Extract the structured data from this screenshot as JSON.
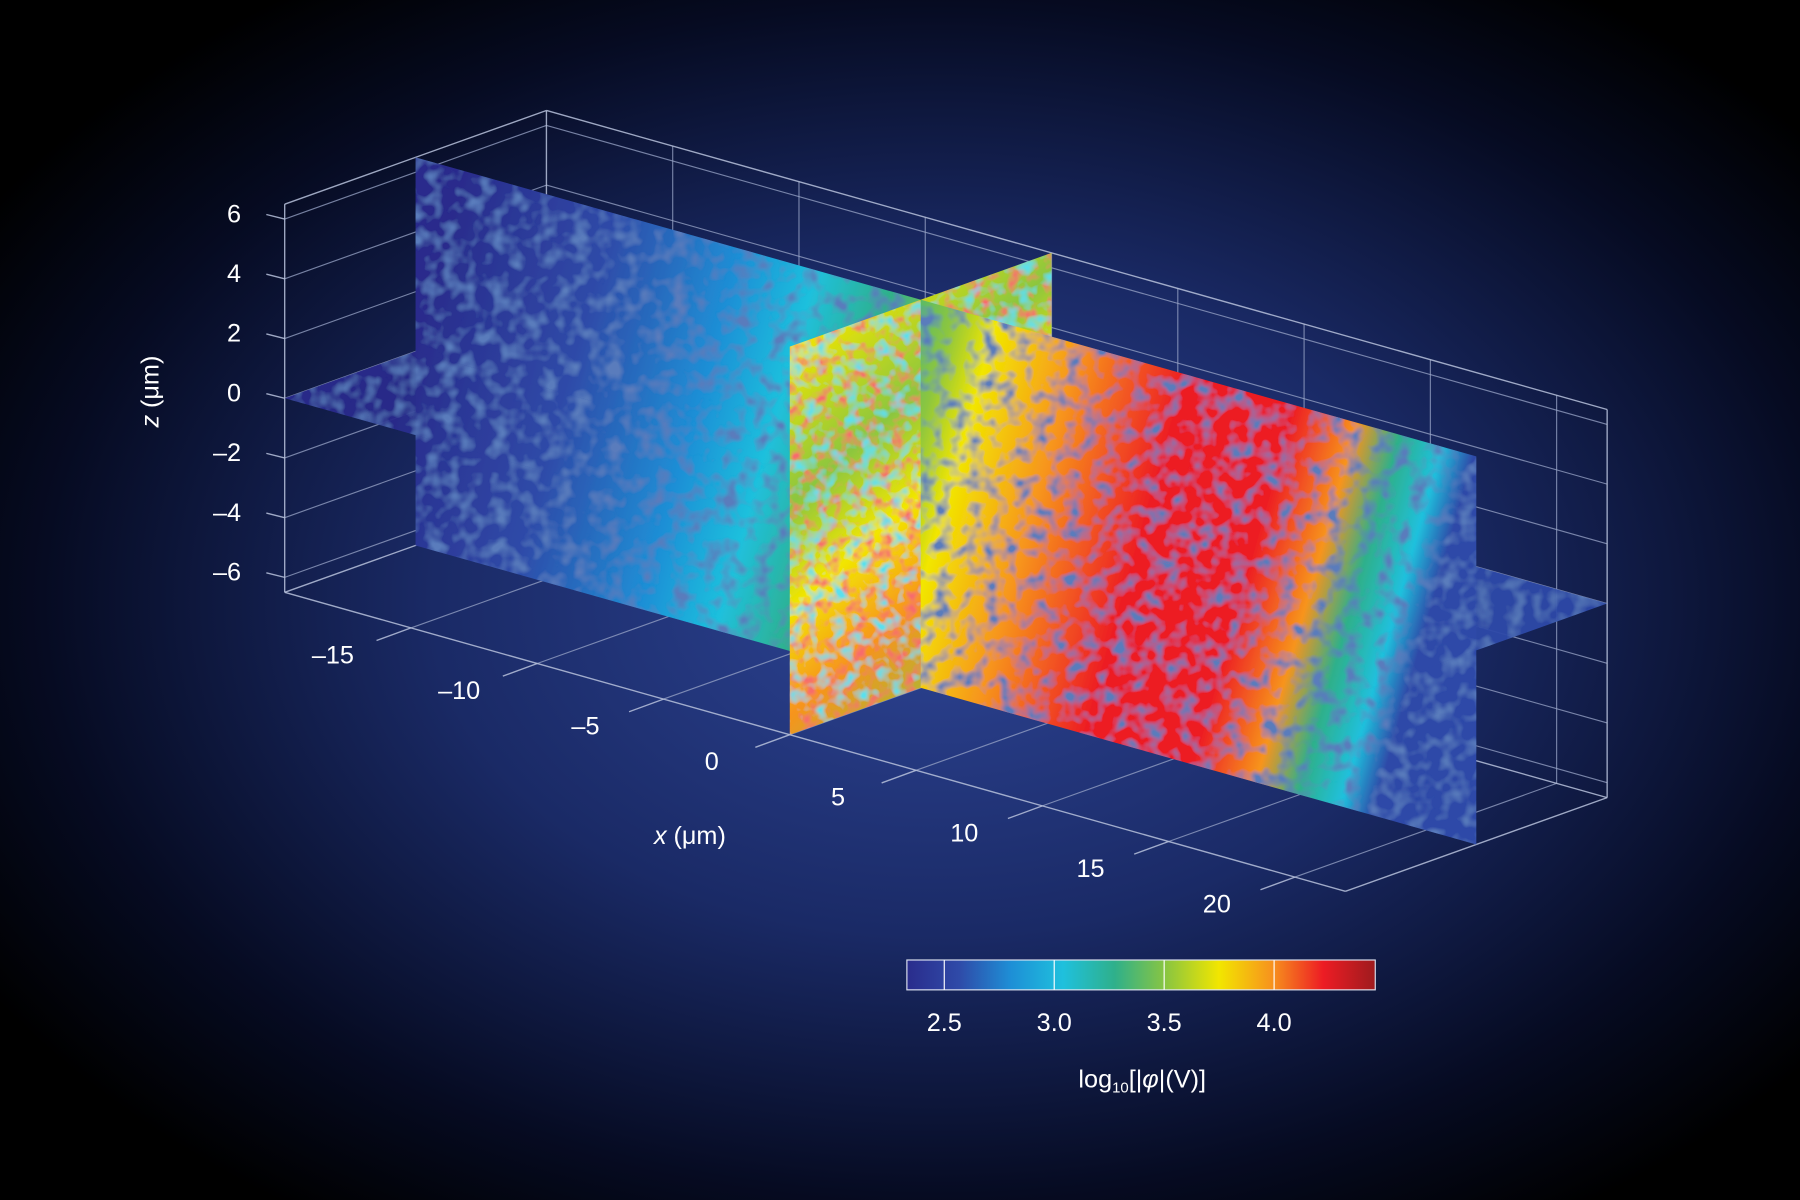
{
  "chart_data": {
    "type": "slices3d",
    "xlabel": {
      "variable": "x",
      "unit": "(μm)"
    },
    "zlabel": {
      "variable": "z",
      "unit": "(μm)"
    },
    "xlim": [
      -20,
      22
    ],
    "ylim": [
      -6,
      6
    ],
    "zlim": [
      -6.5,
      6.5
    ],
    "xticks": [
      {
        "value": -15,
        "label": "–15"
      },
      {
        "value": -10,
        "label": "–10"
      },
      {
        "value": -5,
        "label": "–5"
      },
      0,
      5,
      10,
      15,
      20
    ],
    "zticks": [
      6,
      4,
      2,
      0,
      {
        "value": -2,
        "label": "–2"
      },
      {
        "value": -4,
        "label": "–4"
      },
      {
        "value": -6,
        "label": "–6"
      }
    ],
    "grid": true,
    "colorbar": {
      "clim": [
        2.33,
        4.46
      ],
      "ticks": [
        2.5,
        {
          "value": 3,
          "label": "3.0"
        },
        3.5,
        {
          "value": 4,
          "label": "4.0"
        }
      ],
      "label": {
        "base": "log",
        "subscript": "10",
        "open": "[|",
        "symbol": "φ",
        "close": "|(V)]"
      },
      "colors": [
        "#2a2c8c",
        "#2f4aa8",
        "#1e8fd6",
        "#1fc0dd",
        "#2fb08a",
        "#8cc63f",
        "#f2e600",
        "#f7941d",
        "#ed1c24",
        "#9e1b1e"
      ]
    }
  }
}
